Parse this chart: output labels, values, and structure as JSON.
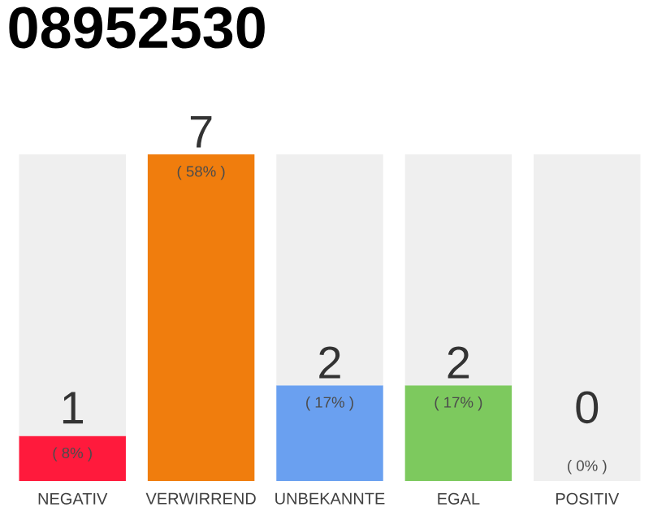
{
  "chart_data": {
    "type": "bar",
    "title": "08952530",
    "stacked": true,
    "categories": [
      "NEGATIV",
      "VERWIRREND",
      "UNBEKANNTE",
      "EGAL",
      "POSITIV"
    ],
    "series": [
      {
        "colors": [
          "#ff1a3c",
          "#f07d0d",
          "#6aa0f0",
          "#7dc95e",
          "#bbbbbb"
        ],
        "values": [
          8,
          58,
          17,
          17,
          0
        ],
        "value_labels": [
          "( 8% )",
          "( 58% )",
          "( 17% )",
          "( 17% )",
          null
        ]
      },
      {
        "color": "#efefef",
        "values": [
          50,
          0,
          41,
          41,
          58
        ]
      }
    ],
    "annotations": [
      {
        "text": "1",
        "x": "NEGATIV",
        "y": 8
      },
      {
        "text": "7",
        "x": "VERWIRREND",
        "y": 58
      },
      {
        "text": "2",
        "x": "UNBEKANNTE",
        "y": 17
      },
      {
        "text": "2",
        "x": "EGAL",
        "y": 17
      },
      {
        "text": "0",
        "x": "POSITIV",
        "y": 0
      },
      {
        "text": "( 0% )",
        "x": "POSITIV",
        "y": 0
      }
    ]
  }
}
